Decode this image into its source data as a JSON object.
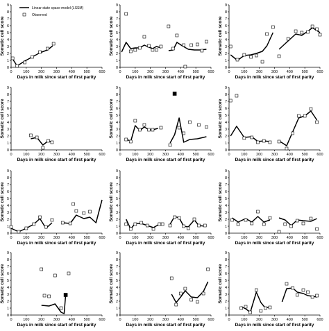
{
  "common": {
    "xlabel": "Days in milk since start of first parity",
    "ylabel": "Somatic cell score",
    "xticks": [
      0,
      100,
      200,
      300,
      400,
      500,
      600
    ],
    "yticks": [
      0,
      1,
      2,
      3,
      4,
      5,
      6,
      7,
      8,
      9
    ],
    "xlim": [
      0,
      600
    ],
    "ylim": [
      0,
      9
    ]
  },
  "legend": {
    "location": "top-left of first panel",
    "line_label": "Linear state space model (LSSM)",
    "marker_label": "Observed"
  },
  "chart_data": [
    {
      "type": "line+scatter",
      "model": [
        [
          [
            10,
            1.2
          ],
          [
            40,
            0.2
          ],
          [
            90,
            0.9
          ],
          [
            140,
            1.5
          ],
          [
            190,
            2.1
          ],
          [
            240,
            2.5
          ],
          [
            275,
            3.1
          ]
        ]
      ],
      "observed": [
        [
          10,
          1.3
        ],
        [
          40,
          0.2
        ],
        [
          90,
          0.7
        ],
        [
          140,
          1.5
        ],
        [
          190,
          2.2
        ],
        [
          240,
          2.7
        ],
        [
          280,
          3.4
        ]
      ],
      "filled": []
    },
    {
      "type": "line+scatter",
      "model": [
        [
          [
            10,
            2.2
          ],
          [
            40,
            3.6
          ],
          [
            70,
            2.7
          ],
          [
            100,
            2.8
          ],
          [
            130,
            2.8
          ],
          [
            160,
            3.2
          ],
          [
            190,
            2.9
          ],
          [
            215,
            2.7
          ],
          [
            240,
            3.0
          ],
          [
            270,
            2.8
          ]
        ],
        [
          [
            320,
            2.4
          ],
          [
            350,
            2.5
          ],
          [
            375,
            3.6
          ],
          [
            410,
            3.1
          ],
          [
            450,
            2.6
          ],
          [
            490,
            2.5
          ],
          [
            530,
            2.5
          ],
          [
            570,
            2.6
          ]
        ]
      ],
      "observed": [
        [
          40,
          7.7
        ],
        [
          70,
          2.3
        ],
        [
          100,
          2.5
        ],
        [
          130,
          2.8
        ],
        [
          160,
          4.4
        ],
        [
          190,
          3.1
        ],
        [
          215,
          2.5
        ],
        [
          240,
          2.5
        ],
        [
          270,
          3.0
        ],
        [
          320,
          5.9
        ],
        [
          350,
          2.7
        ],
        [
          375,
          4.6
        ],
        [
          420,
          3.2
        ],
        [
          430,
          0.1
        ],
        [
          470,
          3.2
        ],
        [
          510,
          3.3
        ],
        [
          540,
          2.4
        ],
        [
          570,
          3.7
        ]
      ],
      "filled": []
    },
    {
      "type": "line+scatter",
      "model": [
        [
          [
            10,
            1.8
          ],
          [
            55,
            1.0
          ],
          [
            100,
            1.7
          ],
          [
            145,
            1.8
          ],
          [
            180,
            2.0
          ],
          [
            220,
            2.3
          ],
          [
            250,
            3.1
          ],
          [
            290,
            5.0
          ]
        ],
        [
          [
            330,
            2.6
          ],
          [
            390,
            3.8
          ],
          [
            440,
            4.8
          ],
          [
            480,
            4.6
          ],
          [
            520,
            5.2
          ],
          [
            550,
            5.7
          ],
          [
            580,
            5.3
          ],
          [
            600,
            5.0
          ]
        ]
      ],
      "observed": [
        [
          10,
          3.0
        ],
        [
          55,
          1.1
        ],
        [
          100,
          1.8
        ],
        [
          145,
          1.5
        ],
        [
          180,
          1.7
        ],
        [
          220,
          0.8
        ],
        [
          250,
          4.8
        ],
        [
          290,
          5.8
        ],
        [
          330,
          1.6
        ],
        [
          390,
          4.1
        ],
        [
          440,
          5.2
        ],
        [
          480,
          5.0
        ],
        [
          520,
          5.1
        ],
        [
          550,
          5.9
        ],
        [
          580,
          5.5
        ],
        [
          600,
          4.7
        ]
      ],
      "filled": []
    },
    {
      "type": "line+scatter",
      "model": [
        [
          [
            130,
            1.6
          ],
          [
            170,
            1.8
          ],
          [
            210,
            0.7
          ],
          [
            245,
            1.3
          ],
          [
            270,
            1.1
          ]
        ]
      ],
      "observed": [
        [
          130,
          2.1
        ],
        [
          170,
          1.8
        ],
        [
          210,
          0.3
        ],
        [
          245,
          1.3
        ],
        [
          270,
          1.1
        ]
      ],
      "filled": []
    },
    {
      "type": "line+scatter",
      "model": [
        [
          [
            40,
            1.6
          ],
          [
            70,
            1.2
          ],
          [
            100,
            3.5
          ],
          [
            130,
            2.8
          ],
          [
            160,
            3.3
          ],
          [
            190,
            2.9
          ],
          [
            215,
            2.9
          ],
          [
            250,
            3.1
          ]
        ],
        [
          [
            330,
            1.0
          ],
          [
            360,
            2.2
          ],
          [
            390,
            4.6
          ],
          [
            420,
            1.1
          ],
          [
            460,
            1.5
          ],
          [
            510,
            1.6
          ],
          [
            570,
            1.9
          ]
        ]
      ],
      "observed": [
        [
          40,
          1.5
        ],
        [
          70,
          1.2
        ],
        [
          100,
          4.2
        ],
        [
          130,
          2.9
        ],
        [
          160,
          3.6
        ],
        [
          190,
          2.9
        ],
        [
          215,
          2.9
        ],
        [
          270,
          3.2
        ],
        [
          330,
          0.7
        ],
        [
          390,
          3.2
        ],
        [
          420,
          2.4
        ],
        [
          460,
          4.0
        ],
        [
          520,
          3.6
        ],
        [
          570,
          3.3
        ]
      ],
      "filled": [
        [
          360,
          8.1
        ]
      ]
    },
    {
      "type": "line+scatter",
      "model": [
        [
          [
            10,
            2.0
          ],
          [
            50,
            3.4
          ],
          [
            100,
            1.8
          ],
          [
            150,
            1.9
          ],
          [
            190,
            1.2
          ],
          [
            230,
            1.3
          ],
          [
            270,
            1.2
          ]
        ],
        [
          [
            330,
            1.3
          ],
          [
            380,
            0.6
          ],
          [
            420,
            2.6
          ],
          [
            460,
            4.6
          ],
          [
            500,
            4.9
          ],
          [
            540,
            5.6
          ],
          [
            580,
            4.3
          ]
        ]
      ],
      "observed": [
        [
          10,
          7.1
        ],
        [
          50,
          7.8
        ],
        [
          100,
          1.7
        ],
        [
          150,
          1.8
        ],
        [
          190,
          1.1
        ],
        [
          230,
          1.3
        ],
        [
          270,
          1.1
        ],
        [
          330,
          1.2
        ],
        [
          380,
          0.2
        ],
        [
          420,
          2.4
        ],
        [
          460,
          4.9
        ],
        [
          500,
          4.9
        ],
        [
          540,
          5.9
        ],
        [
          580,
          4.0
        ]
      ],
      "filled": []
    },
    {
      "type": "line+scatter",
      "model": [
        [
          [
            0,
            0.7
          ],
          [
            50,
            0.2
          ],
          [
            100,
            0.7
          ],
          [
            150,
            1.3
          ],
          [
            190,
            2.1
          ],
          [
            230,
            0.7
          ],
          [
            270,
            1.5
          ]
        ],
        [
          [
            340,
            1.5
          ],
          [
            390,
            1.4
          ],
          [
            430,
            2.6
          ],
          [
            480,
            2.1
          ],
          [
            520,
            2.3
          ],
          [
            560,
            1.5
          ],
          [
            600,
            4.8
          ]
        ]
      ],
      "observed": [
        [
          0,
          0.9
        ],
        [
          50,
          0.2
        ],
        [
          100,
          0.7
        ],
        [
          150,
          1.3
        ],
        [
          190,
          2.3
        ],
        [
          230,
          0.9
        ],
        [
          270,
          1.9
        ],
        [
          340,
          1.5
        ],
        [
          390,
          1.4
        ],
        [
          410,
          4.2
        ],
        [
          430,
          3.2
        ],
        [
          480,
          2.9
        ],
        [
          520,
          3.1
        ]
      ],
      "filled": []
    },
    {
      "type": "line+scatter",
      "model": [
        [
          [
            40,
            2.0
          ],
          [
            70,
            0.6
          ],
          [
            100,
            1.4
          ],
          [
            140,
            1.4
          ],
          [
            180,
            1.1
          ],
          [
            220,
            0.8
          ],
          [
            260,
            1.3
          ],
          [
            280,
            1.2
          ]
        ],
        [
          [
            330,
            1.3
          ],
          [
            360,
            2.4
          ],
          [
            390,
            2.2
          ],
          [
            420,
            1.0
          ],
          [
            450,
            0.9
          ],
          [
            490,
            1.9
          ],
          [
            520,
            1.1
          ],
          [
            560,
            1.0
          ]
        ]
      ],
      "observed": [
        [
          40,
          1.3
        ],
        [
          70,
          0.6
        ],
        [
          100,
          1.3
        ],
        [
          140,
          1.5
        ],
        [
          180,
          1.1
        ],
        [
          220,
          0.6
        ],
        [
          260,
          1.3
        ],
        [
          280,
          1.3
        ],
        [
          330,
          1.1
        ],
        [
          360,
          2.3
        ],
        [
          390,
          2.2
        ],
        [
          420,
          1.0
        ],
        [
          450,
          0.7
        ],
        [
          490,
          2.0
        ],
        [
          520,
          1.1
        ],
        [
          560,
          1.1
        ]
      ],
      "filled": []
    },
    {
      "type": "line+scatter",
      "model": [
        [
          [
            20,
            2.2
          ],
          [
            60,
            1.6
          ],
          [
            110,
            2.1
          ],
          [
            150,
            1.6
          ],
          [
            190,
            2.4
          ],
          [
            230,
            1.6
          ],
          [
            270,
            1.9
          ]
        ],
        [
          [
            330,
            2.2
          ],
          [
            370,
            1.9
          ],
          [
            410,
            1.1
          ],
          [
            450,
            1.9
          ],
          [
            490,
            1.8
          ],
          [
            540,
            1.7
          ],
          [
            580,
            2.1
          ]
        ]
      ],
      "observed": [
        [
          20,
          1.9
        ],
        [
          60,
          1.3
        ],
        [
          110,
          1.9
        ],
        [
          150,
          1.4
        ],
        [
          190,
          3.1
        ],
        [
          230,
          1.3
        ],
        [
          270,
          2.2
        ],
        [
          330,
          0.2
        ],
        [
          370,
          1.3
        ],
        [
          410,
          1.0
        ],
        [
          450,
          1.8
        ],
        [
          490,
          1.4
        ],
        [
          540,
          2.1
        ],
        [
          580,
          0.6
        ]
      ],
      "filled": []
    },
    {
      "type": "line+scatter",
      "model": [
        [
          [
            200,
            1.4
          ],
          [
            250,
            1.3
          ],
          [
            290,
            1.6
          ],
          [
            330,
            0.4
          ],
          [
            350,
            0.2
          ],
          [
            360,
            2.9
          ]
        ]
      ],
      "observed": [
        [
          200,
          6.6
        ],
        [
          220,
          2.8
        ],
        [
          250,
          2.7
        ],
        [
          290,
          5.7
        ],
        [
          330,
          1.0
        ],
        [
          380,
          6.0
        ]
      ],
      "filled": [
        [
          360,
          2.9
        ]
      ]
    },
    {
      "type": "line+scatter",
      "model": [
        [
          [
            340,
            3.0
          ],
          [
            370,
            1.8
          ],
          [
            400,
            2.6
          ],
          [
            430,
            3.5
          ],
          [
            470,
            2.6
          ],
          [
            510,
            2.5
          ],
          [
            550,
            3.4
          ],
          [
            580,
            4.8
          ]
        ]
      ],
      "observed": [
        [
          340,
          5.3
        ],
        [
          370,
          1.5
        ],
        [
          400,
          3.1
        ],
        [
          430,
          3.8
        ],
        [
          470,
          2.2
        ],
        [
          510,
          1.9
        ],
        [
          550,
          3.1
        ],
        [
          580,
          6.6
        ]
      ],
      "filled": []
    },
    {
      "type": "line+scatter",
      "model": [
        [
          [
            80,
            1.2
          ],
          [
            110,
            0.9
          ],
          [
            140,
            0.4
          ],
          [
            180,
            3.3
          ],
          [
            210,
            1.8
          ],
          [
            240,
            1.0
          ],
          [
            270,
            1.2
          ]
        ],
        [
          [
            350,
            1.9
          ],
          [
            380,
            3.8
          ],
          [
            420,
            3.9
          ],
          [
            450,
            3.3
          ],
          [
            490,
            3.1
          ],
          [
            520,
            2.8
          ],
          [
            550,
            2.7
          ],
          [
            580,
            2.6
          ]
        ]
      ],
      "observed": [
        [
          80,
          1.0
        ],
        [
          110,
          1.2
        ],
        [
          140,
          0.4
        ],
        [
          180,
          3.6
        ],
        [
          210,
          0.6
        ],
        [
          240,
          1.0
        ],
        [
          270,
          1.1
        ],
        [
          380,
          4.5
        ],
        [
          420,
          3.9
        ],
        [
          450,
          2.9
        ],
        [
          490,
          3.6
        ],
        [
          520,
          3.3
        ],
        [
          550,
          2.6
        ],
        [
          580,
          2.8
        ]
      ],
      "filled": []
    }
  ]
}
